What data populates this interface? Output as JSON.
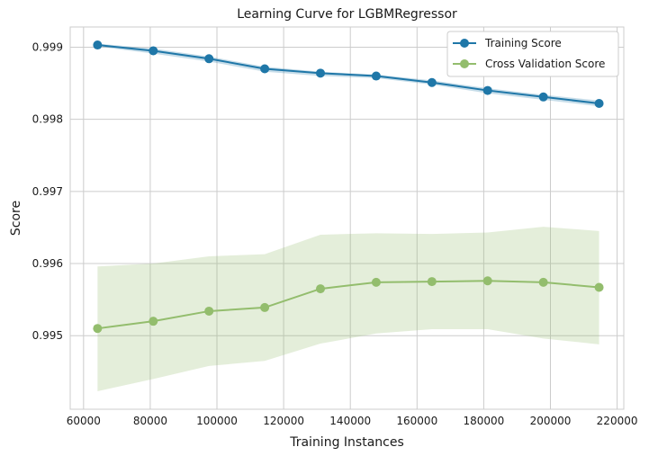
{
  "chart_data": {
    "type": "line",
    "title": "Learning Curve for LGBMRegressor",
    "xlabel": "Training Instances",
    "ylabel": "Score",
    "xlim": [
      56000,
      222000
    ],
    "ylim": [
      0.99398,
      0.99928
    ],
    "xticks": [
      60000,
      80000,
      100000,
      120000,
      140000,
      160000,
      180000,
      200000,
      220000
    ],
    "yticks": [
      0.995,
      0.996,
      0.997,
      0.998,
      0.999
    ],
    "grid": true,
    "legend_position": "top-right",
    "x": [
      64196,
      80907,
      97618,
      114329,
      131040,
      147751,
      164462,
      181173,
      197884,
      214595
    ],
    "series": [
      {
        "name": "Training Score",
        "color": "#1f77a8",
        "values": [
          0.99903,
          0.99895,
          0.99884,
          0.9987,
          0.99864,
          0.9986,
          0.99851,
          0.9984,
          0.99831,
          0.99822
        ],
        "band_upper": [
          0.99905,
          0.99898,
          0.99887,
          0.99873,
          0.99866,
          0.99862,
          0.99854,
          0.99843,
          0.99834,
          0.99826
        ],
        "band_lower": [
          0.99901,
          0.99891,
          0.9988,
          0.99866,
          0.9986,
          0.99857,
          0.99848,
          0.99836,
          0.99827,
          0.99818
        ]
      },
      {
        "name": "Cross Validation Score",
        "color": "#93bd6d",
        "values": [
          0.9951,
          0.9952,
          0.99534,
          0.99539,
          0.99565,
          0.99574,
          0.99575,
          0.99576,
          0.99574,
          0.99567
        ],
        "band_upper": [
          0.99596,
          0.996,
          0.9961,
          0.99613,
          0.9964,
          0.99642,
          0.99641,
          0.99643,
          0.99651,
          0.99645
        ],
        "band_lower": [
          0.99423,
          0.9944,
          0.99458,
          0.99465,
          0.99489,
          0.99503,
          0.99509,
          0.99509,
          0.99496,
          0.99488
        ]
      }
    ]
  }
}
